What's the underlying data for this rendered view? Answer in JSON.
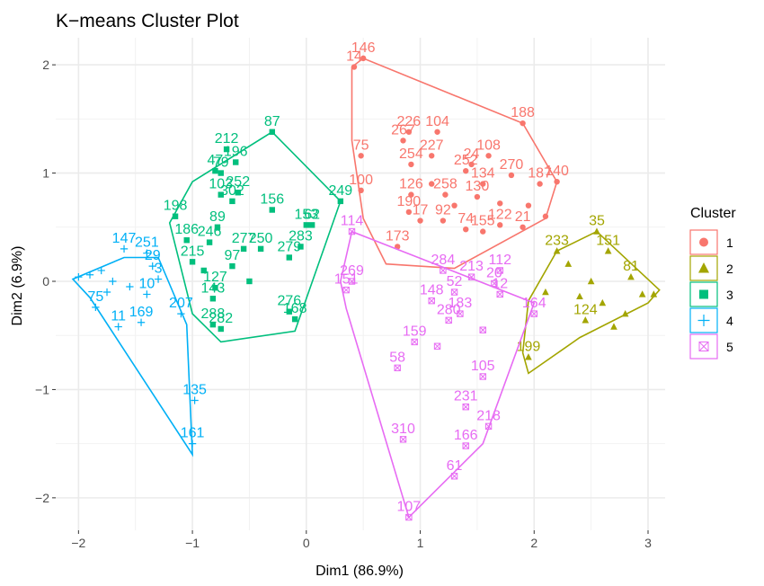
{
  "chart_data": {
    "type": "scatter",
    "title": "K−means Cluster Plot",
    "xlabel": "Dim1 (86.9%)",
    "ylabel": "Dim2 (6.9%)",
    "xlim": [
      -2.2,
      3.15
    ],
    "ylim": [
      -2.3,
      2.25
    ],
    "xticks": [
      -2,
      -1,
      0,
      1,
      2,
      3
    ],
    "xtick_labels": [
      "−2",
      "−1",
      "0",
      "1",
      "2",
      "3"
    ],
    "yticks": [
      -2,
      -1,
      0,
      1,
      2
    ],
    "ytick_labels": [
      "−2",
      "−1",
      "0",
      "1",
      "2"
    ],
    "grid": true,
    "legend": {
      "title": "Cluster",
      "placement": "right"
    },
    "series": [
      {
        "name": "1",
        "color": "#F8766D",
        "shape": "circle",
        "hull": [
          [
            0.4,
            1.98
          ],
          [
            0.5,
            2.06
          ],
          [
            1.9,
            1.46
          ],
          [
            2.2,
            0.92
          ],
          [
            2.1,
            0.58
          ],
          [
            1.3,
            0.12
          ],
          [
            0.7,
            0.16
          ],
          [
            0.5,
            0.58
          ],
          [
            0.4,
            1.3
          ]
        ],
        "points": [
          {
            "id": "146",
            "x": 0.5,
            "y": 2.06
          },
          {
            "id": "14",
            "x": 0.42,
            "y": 1.98
          },
          {
            "id": "188",
            "x": 1.9,
            "y": 1.46
          },
          {
            "id": "226",
            "x": 0.9,
            "y": 1.38
          },
          {
            "id": "104",
            "x": 1.15,
            "y": 1.38
          },
          {
            "id": "267",
            "x": 0.85,
            "y": 1.3
          },
          {
            "id": "75",
            "x": 0.48,
            "y": 1.16
          },
          {
            "id": "227",
            "x": 1.1,
            "y": 1.16
          },
          {
            "id": "108",
            "x": 1.6,
            "y": 1.16
          },
          {
            "id": "254",
            "x": 0.92,
            "y": 1.08
          },
          {
            "id": "24",
            "x": 1.45,
            "y": 1.08
          },
          {
            "id": "252",
            "x": 1.4,
            "y": 1.02
          },
          {
            "id": "270",
            "x": 1.8,
            "y": 0.98
          },
          {
            "id": "134",
            "x": 1.55,
            "y": 0.9
          },
          {
            "id": "187",
            "x": 2.05,
            "y": 0.9
          },
          {
            "id": "140",
            "x": 2.2,
            "y": 0.92
          },
          {
            "id": "100",
            "x": 0.48,
            "y": 0.84
          },
          {
            "id": "126",
            "x": 0.92,
            "y": 0.8
          },
          {
            "id": "258",
            "x": 1.22,
            "y": 0.8
          },
          {
            "id": "130",
            "x": 1.5,
            "y": 0.78
          },
          {
            "id": "190",
            "x": 0.9,
            "y": 0.64
          },
          {
            "id": "17",
            "x": 1.0,
            "y": 0.56
          },
          {
            "id": "92",
            "x": 1.2,
            "y": 0.56
          },
          {
            "id": "122",
            "x": 1.7,
            "y": 0.52
          },
          {
            "id": "21",
            "x": 1.9,
            "y": 0.5
          },
          {
            "id": "74",
            "x": 1.4,
            "y": 0.48
          },
          {
            "id": "155",
            "x": 1.55,
            "y": 0.46
          },
          {
            "id": "173",
            "x": 0.8,
            "y": 0.32
          },
          {
            "id": "",
            "x": 1.3,
            "y": 0.7
          },
          {
            "id": "",
            "x": 1.7,
            "y": 0.72
          },
          {
            "id": "",
            "x": 1.95,
            "y": 0.7
          },
          {
            "id": "",
            "x": 2.1,
            "y": 0.6
          },
          {
            "id": "",
            "x": 1.1,
            "y": 0.9
          }
        ]
      },
      {
        "name": "2",
        "color": "#A3A500",
        "shape": "triangle",
        "hull": [
          [
            2.55,
            0.46
          ],
          [
            3.1,
            -0.08
          ],
          [
            3.0,
            -0.2
          ],
          [
            2.4,
            -0.52
          ],
          [
            1.95,
            -0.85
          ],
          [
            1.9,
            -0.66
          ],
          [
            1.95,
            -0.18
          ],
          [
            2.2,
            0.28
          ]
        ],
        "points": [
          {
            "id": "35",
            "x": 2.55,
            "y": 0.46
          },
          {
            "id": "151",
            "x": 2.65,
            "y": 0.28
          },
          {
            "id": "233",
            "x": 2.2,
            "y": 0.28
          },
          {
            "id": "81",
            "x": 2.85,
            "y": 0.04
          },
          {
            "id": "199",
            "x": 1.95,
            "y": -0.7
          },
          {
            "id": "124",
            "x": 2.45,
            "y": -0.36
          },
          {
            "id": "",
            "x": 2.3,
            "y": 0.16
          },
          {
            "id": "",
            "x": 2.5,
            "y": 0.0
          },
          {
            "id": "",
            "x": 2.6,
            "y": -0.2
          },
          {
            "id": "",
            "x": 2.8,
            "y": -0.3
          },
          {
            "id": "",
            "x": 2.95,
            "y": -0.12
          },
          {
            "id": "",
            "x": 3.05,
            "y": -0.12
          },
          {
            "id": "",
            "x": 2.7,
            "y": -0.42
          },
          {
            "id": "",
            "x": 2.1,
            "y": -0.1
          },
          {
            "id": "",
            "x": 2.4,
            "y": -0.14
          }
        ]
      },
      {
        "name": "3",
        "color": "#00BF7D",
        "shape": "square",
        "hull": [
          [
            -0.3,
            1.38
          ],
          [
            0.3,
            0.74
          ],
          [
            -0.1,
            -0.46
          ],
          [
            -0.75,
            -0.56
          ],
          [
            -1.0,
            -0.3
          ],
          [
            -1.2,
            0.54
          ],
          [
            -1.0,
            0.92
          ]
        ],
        "points": [
          {
            "id": "87",
            "x": -0.3,
            "y": 1.38
          },
          {
            "id": "212",
            "x": -0.7,
            "y": 1.22
          },
          {
            "id": "196",
            "x": -0.62,
            "y": 1.1
          },
          {
            "id": "47",
            "x": -0.8,
            "y": 1.02
          },
          {
            "id": "79",
            "x": -0.75,
            "y": 1.0
          },
          {
            "id": "249",
            "x": 0.3,
            "y": 0.74
          },
          {
            "id": "103",
            "x": -0.75,
            "y": 0.8
          },
          {
            "id": "252",
            "x": -0.6,
            "y": 0.82
          },
          {
            "id": "302",
            "x": -0.65,
            "y": 0.74
          },
          {
            "id": "156",
            "x": -0.3,
            "y": 0.66
          },
          {
            "id": "198",
            "x": -1.15,
            "y": 0.6
          },
          {
            "id": "153",
            "x": 0.0,
            "y": 0.52
          },
          {
            "id": "62",
            "x": 0.05,
            "y": 0.52
          },
          {
            "id": "89",
            "x": -0.78,
            "y": 0.5
          },
          {
            "id": "186",
            "x": -1.05,
            "y": 0.38
          },
          {
            "id": "246",
            "x": -0.85,
            "y": 0.36
          },
          {
            "id": "277",
            "x": -0.55,
            "y": 0.3
          },
          {
            "id": "250",
            "x": -0.4,
            "y": 0.3
          },
          {
            "id": "283",
            "x": -0.05,
            "y": 0.32
          },
          {
            "id": "279",
            "x": -0.15,
            "y": 0.22
          },
          {
            "id": "97",
            "x": -0.65,
            "y": 0.14
          },
          {
            "id": "215",
            "x": -1.0,
            "y": 0.18
          },
          {
            "id": "127",
            "x": -0.8,
            "y": -0.06
          },
          {
            "id": "143",
            "x": -0.82,
            "y": -0.16
          },
          {
            "id": "276",
            "x": -0.15,
            "y": -0.28
          },
          {
            "id": "168",
            "x": -0.1,
            "y": -0.35
          },
          {
            "id": "288",
            "x": -0.82,
            "y": -0.4
          },
          {
            "id": "282",
            "x": -0.75,
            "y": -0.44
          },
          {
            "id": "",
            "x": -0.9,
            "y": 0.1
          },
          {
            "id": "",
            "x": -0.5,
            "y": 0.0
          }
        ]
      },
      {
        "name": "4",
        "color": "#00B0F6",
        "shape": "asterisk",
        "hull": [
          [
            -1.6,
            0.22
          ],
          [
            -1.3,
            0.22
          ],
          [
            -1.05,
            -0.4
          ],
          [
            -1.0,
            -1.6
          ],
          [
            -1.9,
            -0.15
          ],
          [
            -2.05,
            0.02
          ]
        ],
        "points": [
          {
            "id": "147",
            "x": -1.6,
            "y": 0.3
          },
          {
            "id": "251",
            "x": -1.4,
            "y": 0.26
          },
          {
            "id": "29",
            "x": -1.35,
            "y": 0.14
          },
          {
            "id": "3",
            "x": -1.3,
            "y": 0.02
          },
          {
            "id": "10",
            "x": -1.4,
            "y": -0.12
          },
          {
            "id": "75",
            "x": -1.85,
            "y": -0.24
          },
          {
            "id": "11",
            "x": -1.65,
            "y": -0.42
          },
          {
            "id": "169",
            "x": -1.45,
            "y": -0.38
          },
          {
            "id": "207",
            "x": -1.1,
            "y": -0.3
          },
          {
            "id": "135",
            "x": -0.98,
            "y": -1.1
          },
          {
            "id": "161",
            "x": -1.0,
            "y": -1.5
          },
          {
            "id": "",
            "x": -1.9,
            "y": 0.06
          },
          {
            "id": "",
            "x": -1.8,
            "y": 0.1
          },
          {
            "id": "",
            "x": -1.7,
            "y": 0.0
          },
          {
            "id": "",
            "x": -1.55,
            "y": -0.05
          },
          {
            "id": "",
            "x": -1.75,
            "y": -0.1
          },
          {
            "id": "",
            "x": -2.0,
            "y": 0.04
          }
        ]
      },
      {
        "name": "5",
        "color": "#E76BF3",
        "shape": "boxed-x",
        "hull": [
          [
            0.4,
            0.46
          ],
          [
            2.0,
            -0.2
          ],
          [
            1.55,
            -1.5
          ],
          [
            0.9,
            -2.18
          ],
          [
            0.35,
            -0.25
          ],
          [
            0.3,
            0.0
          ]
        ],
        "points": [
          {
            "id": "114",
            "x": 0.4,
            "y": 0.46
          },
          {
            "id": "269",
            "x": 0.4,
            "y": 0.0
          },
          {
            "id": "151",
            "x": 0.35,
            "y": -0.08
          },
          {
            "id": "284",
            "x": 1.2,
            "y": 0.1
          },
          {
            "id": "213",
            "x": 1.45,
            "y": 0.04
          },
          {
            "id": "112",
            "x": 1.7,
            "y": 0.1
          },
          {
            "id": "20",
            "x": 1.65,
            "y": -0.02
          },
          {
            "id": "12",
            "x": 1.7,
            "y": -0.12
          },
          {
            "id": "148",
            "x": 1.1,
            "y": -0.18
          },
          {
            "id": "52",
            "x": 1.3,
            "y": -0.1
          },
          {
            "id": "183",
            "x": 1.35,
            "y": -0.3
          },
          {
            "id": "280",
            "x": 1.25,
            "y": -0.36
          },
          {
            "id": "164",
            "x": 2.0,
            "y": -0.3
          },
          {
            "id": "159",
            "x": 0.95,
            "y": -0.56
          },
          {
            "id": "58",
            "x": 0.8,
            "y": -0.8
          },
          {
            "id": "105",
            "x": 1.55,
            "y": -0.88
          },
          {
            "id": "231",
            "x": 1.4,
            "y": -1.16
          },
          {
            "id": "218",
            "x": 1.6,
            "y": -1.34
          },
          {
            "id": "310",
            "x": 0.85,
            "y": -1.46
          },
          {
            "id": "166",
            "x": 1.4,
            "y": -1.52
          },
          {
            "id": "61",
            "x": 1.3,
            "y": -1.8
          },
          {
            "id": "107",
            "x": 0.9,
            "y": -2.18
          },
          {
            "id": "",
            "x": 1.15,
            "y": -0.6
          },
          {
            "id": "",
            "x": 1.55,
            "y": -0.45
          }
        ]
      }
    ]
  }
}
